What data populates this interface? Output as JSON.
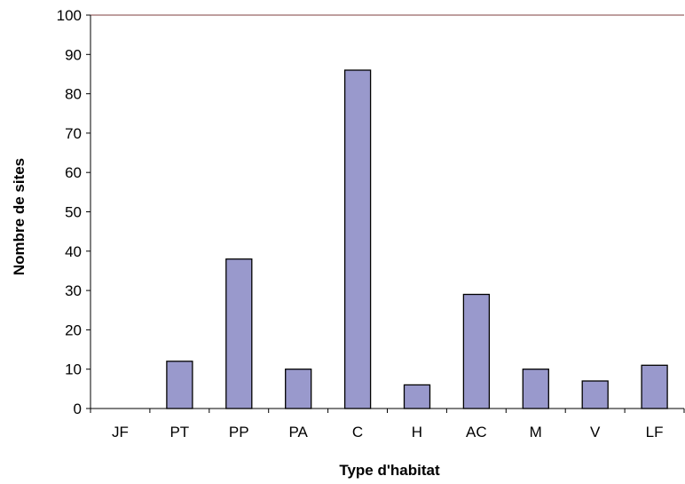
{
  "chart_data": {
    "type": "bar",
    "title": "",
    "xlabel": "Type d'habitat",
    "ylabel": "Nombre de sites",
    "categories": [
      "JF",
      "PT",
      "PP",
      "PA",
      "C",
      "H",
      "AC",
      "M",
      "V",
      "LF"
    ],
    "values": [
      0,
      12,
      38,
      10,
      86,
      6,
      29,
      10,
      7,
      11
    ],
    "ylim": [
      0,
      100
    ],
    "yticks": [
      "0",
      "10",
      "20",
      "30",
      "40",
      "50",
      "60",
      "70",
      "80",
      "90",
      "100"
    ],
    "grid": false,
    "legend": "none",
    "colors": {
      "bar_fill": "#9999CC",
      "bar_stroke": "#000000",
      "axis": "#000000",
      "top_border": "#7F3F3F"
    }
  }
}
